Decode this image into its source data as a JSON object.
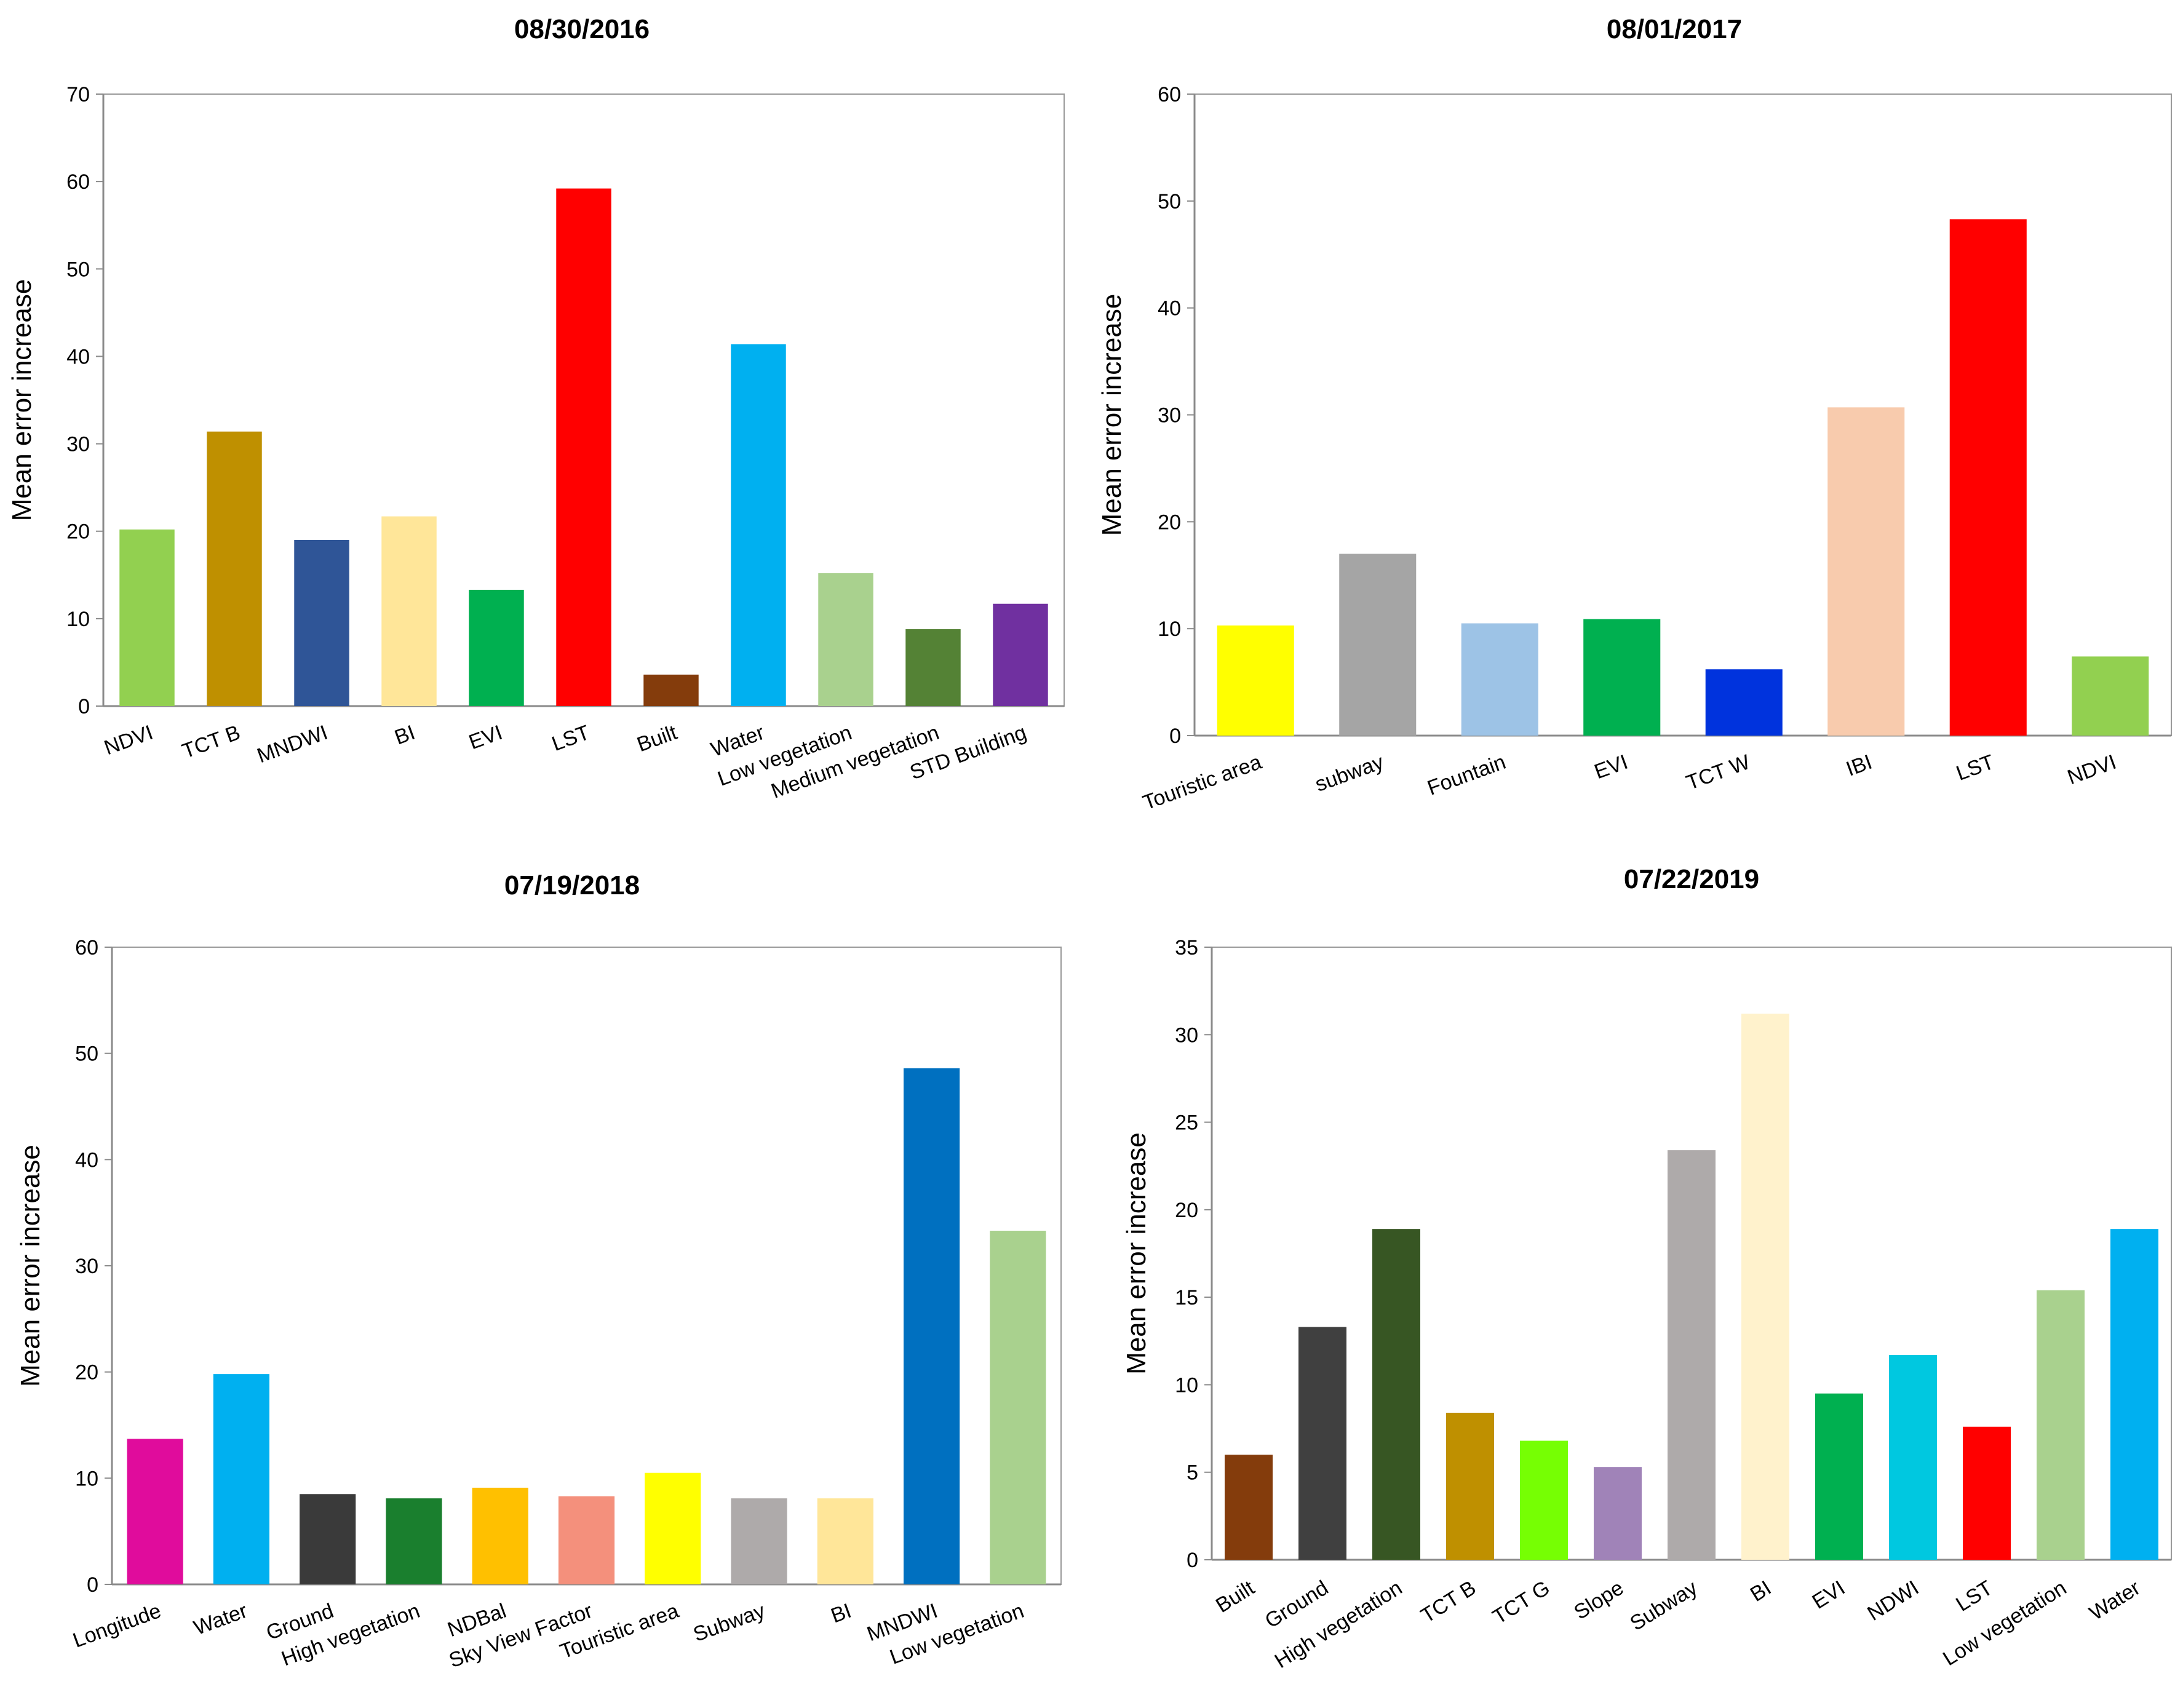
{
  "chart_data": [
    {
      "type": "bar",
      "title": "08/30/2016",
      "xlabel": "",
      "ylabel": "Mean error increase",
      "ylim": [
        0,
        70
      ],
      "yticks": [
        0,
        10,
        20,
        30,
        40,
        50,
        60,
        70
      ],
      "grid": false,
      "categories": [
        "NDVI",
        "TCT B",
        "MNDWI",
        "BI",
        "EVI",
        "LST",
        "Built",
        "Water",
        "Low vegetation",
        "Medium vegetation",
        "STD Building"
      ],
      "values": [
        20.2,
        31.4,
        19.0,
        21.7,
        13.3,
        59.2,
        3.6,
        41.4,
        15.2,
        8.8,
        11.7
      ],
      "colors": [
        "#92d050",
        "#bf9000",
        "#2f5597",
        "#ffe699",
        "#00b050",
        "#ff0000",
        "#843c0c",
        "#00b0f0",
        "#a9d18e",
        "#548235",
        "#7030a0"
      ]
    },
    {
      "type": "bar",
      "title": "08/01/2017",
      "xlabel": "",
      "ylabel": "Mean error increase",
      "ylim": [
        0,
        60
      ],
      "yticks": [
        0,
        10,
        20,
        30,
        40,
        50,
        60
      ],
      "grid": false,
      "categories": [
        "Touristic area",
        "subway",
        "Fountain",
        "EVI",
        "TCT W",
        "IBI",
        "LST",
        "NDVI"
      ],
      "values": [
        10.3,
        17.0,
        10.5,
        10.9,
        6.2,
        30.7,
        48.3,
        7.4
      ],
      "colors": [
        "#ffff00",
        "#a5a5a5",
        "#9dc3e6",
        "#00b050",
        "#0033dd",
        "#f8cbad",
        "#ff0000",
        "#92d050"
      ]
    },
    {
      "type": "bar",
      "title": "07/19/2018",
      "xlabel": "",
      "ylabel": "Mean error increase",
      "ylim": [
        0,
        60
      ],
      "yticks": [
        0,
        10,
        20,
        30,
        40,
        50,
        60
      ],
      "grid": false,
      "categories": [
        "Longitude",
        "Water",
        "Ground",
        "High vegetation",
        "NDBal",
        "Sky View Factor",
        "Touristic area",
        "Subway",
        "BI",
        "MNDWI",
        "Low vegetation"
      ],
      "values": [
        13.7,
        19.8,
        8.5,
        8.1,
        9.1,
        8.3,
        10.5,
        8.1,
        8.1,
        48.6,
        33.3
      ],
      "colors": [
        "#e00c9c",
        "#00b0f0",
        "#3a3a3a",
        "#1a7f2e",
        "#ffc000",
        "#f4907c",
        "#ffff00",
        "#aeaaaa",
        "#ffe699",
        "#0070c0",
        "#a9d18e"
      ]
    },
    {
      "type": "bar",
      "title": "07/22/2019",
      "xlabel": "",
      "ylabel": "Mean error increase",
      "ylim": [
        0,
        35
      ],
      "yticks": [
        0,
        5,
        10,
        15,
        20,
        25,
        30,
        35
      ],
      "grid": false,
      "categories": [
        "Built",
        "Ground",
        "High vegetation",
        "TCT B",
        "TCT G",
        "Slope",
        "Subway",
        "BI",
        "EVI",
        "NDWI",
        "LST",
        "Low vegetation",
        "Water"
      ],
      "values": [
        6.0,
        13.3,
        18.9,
        8.4,
        6.8,
        5.3,
        23.4,
        31.2,
        9.5,
        11.7,
        7.6,
        15.4,
        18.9
      ],
      "colors": [
        "#843c0c",
        "#404040",
        "#375623",
        "#bf9000",
        "#76ff03",
        "#a083b8",
        "#aeaaaa",
        "#fff2cc",
        "#00b050",
        "#00c8e0",
        "#ff0000",
        "#a9d18e",
        "#00b0f0"
      ]
    }
  ]
}
